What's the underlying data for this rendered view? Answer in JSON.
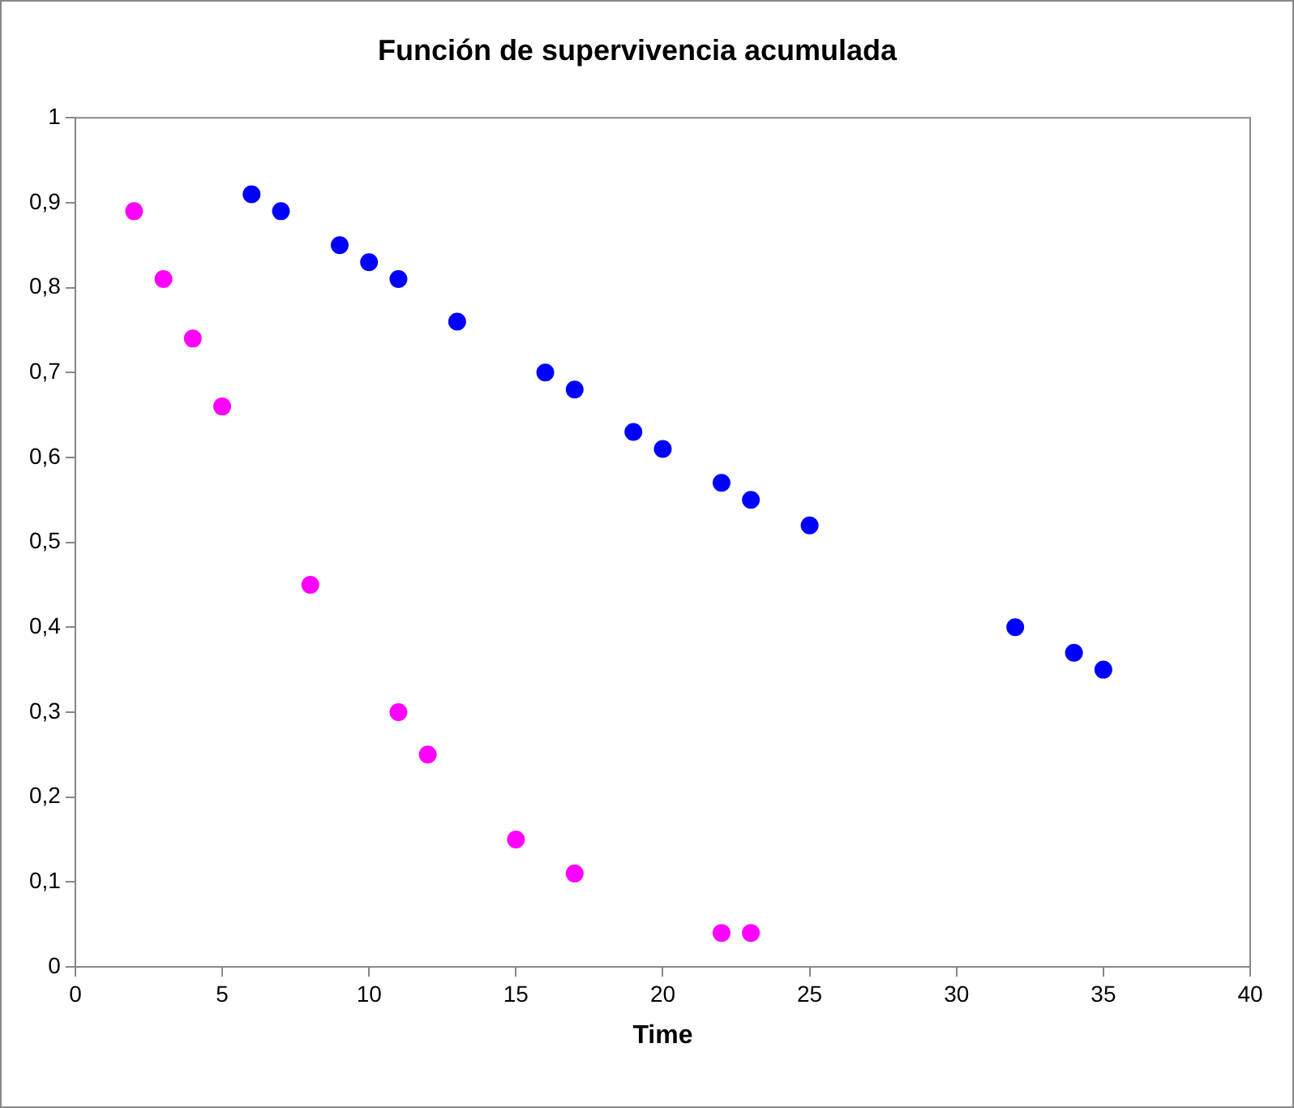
{
  "chart_data": {
    "type": "scatter",
    "title": "Función de supervivencia acumulada",
    "xlabel": "Time",
    "xlim": [
      0,
      40
    ],
    "xticks": [
      0,
      5,
      10,
      15,
      20,
      25,
      30,
      35,
      40
    ],
    "ylim": [
      0,
      1
    ],
    "yticks": [
      0,
      {
        "value": 0.1,
        "label": "0,1"
      },
      {
        "value": 0.2,
        "label": "0,2"
      },
      {
        "value": 0.3,
        "label": "0,3"
      },
      {
        "value": 0.4,
        "label": "0,4"
      },
      {
        "value": 0.5,
        "label": "0,5"
      },
      {
        "value": 0.6,
        "label": "0,6"
      },
      {
        "value": 0.7,
        "label": "0,7"
      },
      {
        "value": 0.8,
        "label": "0,8"
      },
      {
        "value": 0.9,
        "label": "0,9"
      },
      1
    ],
    "marker": "circle",
    "legend": false,
    "grid": false,
    "series": [
      {
        "color": "#0000ff",
        "x": [
          6,
          7,
          9,
          10,
          11,
          13,
          16,
          17,
          19,
          20,
          22,
          23,
          25,
          32,
          34,
          35
        ],
        "values": [
          0.91,
          0.89,
          0.85,
          0.83,
          0.81,
          0.76,
          0.7,
          0.68,
          0.63,
          0.61,
          0.57,
          0.55,
          0.52,
          0.4,
          0.37,
          0.35
        ]
      },
      {
        "color": "#ff00ff",
        "x": [
          2,
          3,
          4,
          5,
          8,
          11,
          12,
          15,
          17,
          22,
          23
        ],
        "values": [
          0.89,
          0.81,
          0.74,
          0.66,
          0.45,
          0.3,
          0.25,
          0.15,
          0.11,
          0.04,
          0.04
        ]
      }
    ]
  }
}
